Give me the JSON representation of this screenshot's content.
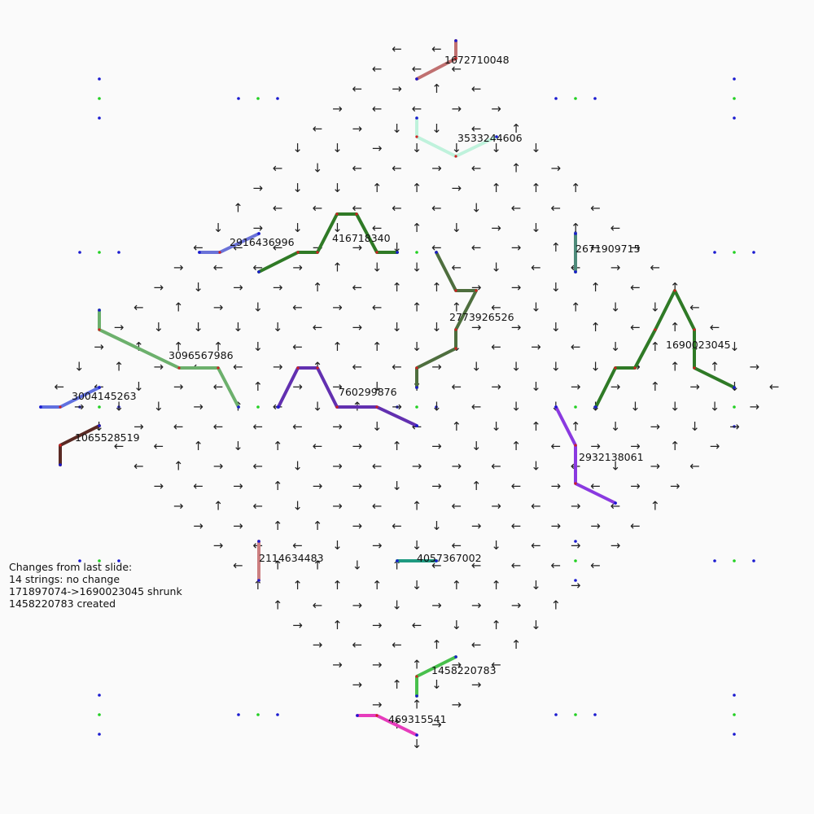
{
  "diagram": {
    "strings": [
      {
        "id": "1672710048",
        "color": "#c07070"
      },
      {
        "id": "3533244606",
        "color": "#bff2dc"
      },
      {
        "id": "2916436996",
        "color": "#6a72d8"
      },
      {
        "id": "416718340",
        "color": "#2f7a26"
      },
      {
        "id": "2671909715",
        "color": "#4e8a7a"
      },
      {
        "id": "2773926526",
        "color": "#4e6e3e"
      },
      {
        "id": "3096567986",
        "color": "#6cb06c"
      },
      {
        "id": "1690023045",
        "color": "#2f7a26"
      },
      {
        "id": "3004145263",
        "color": "#6070e0"
      },
      {
        "id": "760299876",
        "color": "#6230b0"
      },
      {
        "id": "1065528519",
        "color": "#5a2a24"
      },
      {
        "id": "2932138061",
        "color": "#8a3ae0"
      },
      {
        "id": "2114634483",
        "color": "#cc7f80"
      },
      {
        "id": "4057367002",
        "color": "#1e9a80"
      },
      {
        "id": "1458220783",
        "color": "#48c04c"
      },
      {
        "id": "469315541",
        "color": "#e63cbc"
      }
    ]
  },
  "changes": {
    "heading": "Changes from last slide:",
    "lines": [
      "14 strings: no change",
      "171897074->1690023045 shrunk",
      "1458220783 created"
    ]
  }
}
